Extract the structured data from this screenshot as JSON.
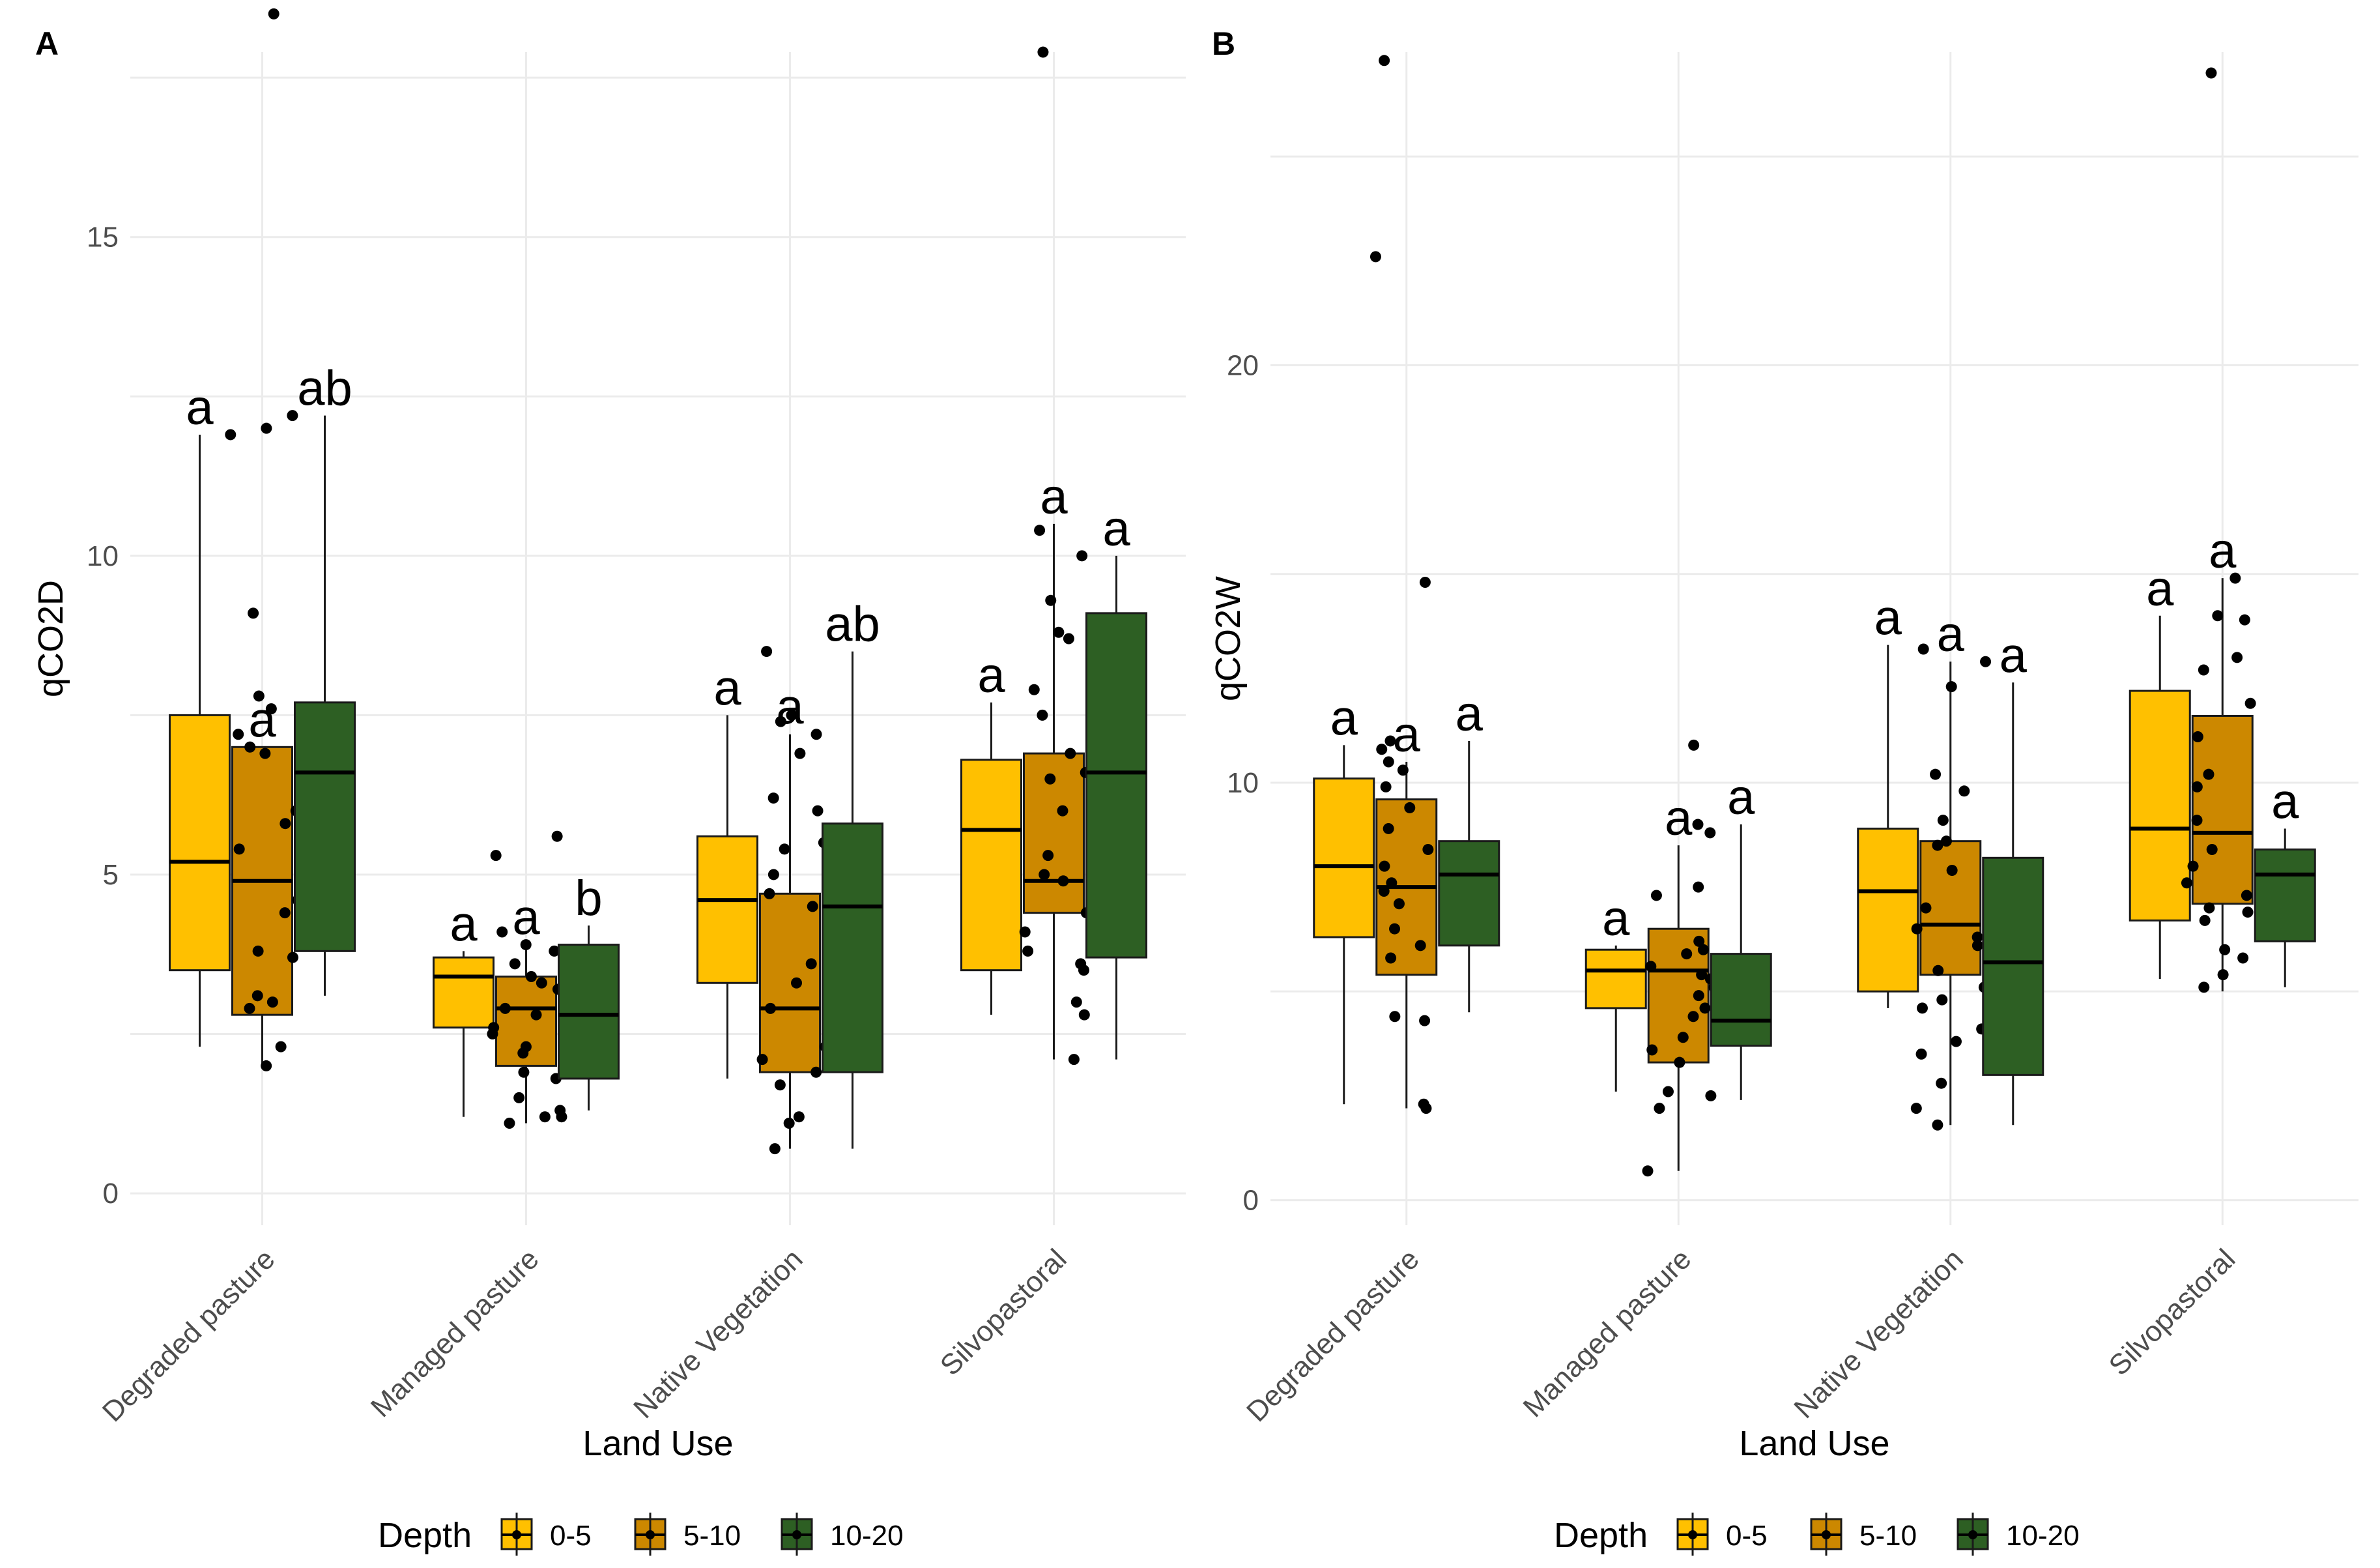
{
  "legend": {
    "title": "Depth",
    "items": [
      {
        "label": "0-5",
        "color": "#FFC000"
      },
      {
        "label": "5-10",
        "color": "#CC8800"
      },
      {
        "label": "10-20",
        "color": "#2D5F23"
      }
    ]
  },
  "chart_data": [
    {
      "type": "boxplot",
      "panel_label": "A",
      "xlabel": "Land Use",
      "ylabel": "qCO2D",
      "ylim": [
        -0.5,
        17.9
      ],
      "yticks": [
        0,
        5,
        10,
        15
      ],
      "grid": true,
      "categories": [
        "Degraded pasture",
        "Managed pasture",
        "Native Vegetation",
        "Silvopastoral"
      ],
      "series": [
        {
          "name": "0-5",
          "boxes": [
            {
              "min": 2.3,
              "q1": 3.5,
              "median": 5.2,
              "q3": 7.5,
              "max": 11.9,
              "letter": "a",
              "points": []
            },
            {
              "min": 1.2,
              "q1": 2.6,
              "median": 3.4,
              "q3": 3.7,
              "max": 3.8,
              "letter": "a",
              "points": []
            },
            {
              "min": 1.8,
              "q1": 3.3,
              "median": 4.6,
              "q3": 5.6,
              "max": 7.5,
              "letter": "a",
              "points": []
            },
            {
              "min": 2.8,
              "q1": 3.5,
              "median": 5.7,
              "q3": 6.8,
              "max": 7.7,
              "letter": "a",
              "points": []
            }
          ]
        },
        {
          "name": "5-10",
          "boxes": [
            {
              "min": 2.0,
              "q1": 2.8,
              "median": 4.9,
              "q3": 7.0,
              "max": 7.0,
              "letter": "a",
              "points": [
                12.2,
                11.9,
                12.0,
                9.1,
                7.8,
                7.6,
                7.2,
                7.0,
                6.9,
                6.0,
                5.8,
                5.4,
                4.6,
                4.4,
                3.8,
                3.7,
                3.1,
                3.0,
                2.9,
                2.3,
                2.0,
                18.5
              ]
            },
            {
              "min": 1.1,
              "q1": 2.0,
              "median": 2.9,
              "q3": 3.4,
              "max": 3.9,
              "letter": "a",
              "points": [
                5.6,
                5.3,
                4.1,
                3.9,
                3.8,
                3.6,
                3.4,
                3.3,
                3.2,
                2.9,
                2.8,
                2.6,
                2.5,
                2.3,
                2.2,
                1.9,
                1.8,
                1.5,
                1.2,
                1.1,
                1.2,
                1.3
              ]
            },
            {
              "min": 0.7,
              "q1": 1.9,
              "median": 2.9,
              "q3": 4.7,
              "max": 7.2,
              "letter": "a",
              "points": [
                8.5,
                7.5,
                7.4,
                7.2,
                6.9,
                6.2,
                6.0,
                5.5,
                5.4,
                5.0,
                4.7,
                4.5,
                3.6,
                3.3,
                2.9,
                2.3,
                2.1,
                1.9,
                1.7,
                1.2,
                1.1,
                0.7
              ]
            },
            {
              "min": 2.1,
              "q1": 4.4,
              "median": 4.9,
              "q3": 6.9,
              "max": 10.5,
              "letter": "a",
              "points": [
                10.4,
                10.0,
                9.3,
                8.8,
                8.7,
                7.9,
                7.5,
                6.9,
                6.6,
                6.5,
                6.0,
                5.3,
                5.0,
                4.9,
                4.4,
                4.1,
                3.8,
                3.6,
                3.5,
                3.0,
                2.8,
                2.1,
                17.9
              ]
            }
          ]
        },
        {
          "name": "10-20",
          "boxes": [
            {
              "min": 3.1,
              "q1": 3.8,
              "median": 6.6,
              "q3": 7.7,
              "max": 12.2,
              "letter": "ab",
              "points": []
            },
            {
              "min": 1.3,
              "q1": 1.8,
              "median": 2.8,
              "q3": 3.9,
              "max": 4.2,
              "letter": "b",
              "points": []
            },
            {
              "min": 0.7,
              "q1": 1.9,
              "median": 4.5,
              "q3": 5.8,
              "max": 8.5,
              "letter": "ab",
              "points": []
            },
            {
              "min": 2.1,
              "q1": 3.7,
              "median": 6.6,
              "q3": 9.1,
              "max": 10.0,
              "letter": "a",
              "points": []
            }
          ]
        }
      ]
    },
    {
      "type": "boxplot",
      "panel_label": "B",
      "xlabel": "Land Use",
      "ylabel": "qCO2W",
      "ylim": [
        -0.6,
        27.5
      ],
      "yticks": [
        0,
        10,
        20
      ],
      "grid": true,
      "categories": [
        "Degraded pasture",
        "Managed pasture",
        "Native Vegetation",
        "Silvopastoral"
      ],
      "series": [
        {
          "name": "0-5",
          "boxes": [
            {
              "min": 2.3,
              "q1": 6.3,
              "median": 8.0,
              "q3": 10.1,
              "max": 10.9,
              "letter": "a",
              "points": []
            },
            {
              "min": 2.6,
              "q1": 4.6,
              "median": 5.5,
              "q3": 6.0,
              "max": 6.1,
              "letter": "a",
              "points": []
            },
            {
              "min": 4.6,
              "q1": 5.0,
              "median": 7.4,
              "q3": 8.9,
              "max": 13.3,
              "letter": "a",
              "points": []
            },
            {
              "min": 5.3,
              "q1": 6.7,
              "median": 8.9,
              "q3": 12.2,
              "max": 14.0,
              "letter": "a",
              "points": []
            }
          ]
        },
        {
          "name": "5-10",
          "boxes": [
            {
              "min": 2.2,
              "q1": 5.4,
              "median": 7.5,
              "q3": 9.6,
              "max": 10.5,
              "letter": "a",
              "points": [
                27.3,
                22.6,
                14.8,
                11.0,
                10.8,
                10.5,
                10.3,
                9.9,
                9.4,
                8.9,
                8.4,
                8.0,
                7.6,
                7.4,
                7.1,
                6.5,
                6.1,
                5.8,
                4.4,
                4.3,
                2.3,
                2.2
              ]
            },
            {
              "min": 0.7,
              "q1": 3.3,
              "median": 5.5,
              "q3": 6.5,
              "max": 8.5,
              "letter": "a",
              "points": [
                10.9,
                9.0,
                8.8,
                7.5,
                7.3,
                6.2,
                6.0,
                5.9,
                5.6,
                5.4,
                5.3,
                5.1,
                4.9,
                4.6,
                4.4,
                3.9,
                3.6,
                3.3,
                2.6,
                2.5,
                2.2,
                0.7
              ]
            },
            {
              "min": 1.8,
              "q1": 5.4,
              "median": 6.6,
              "q3": 8.6,
              "max": 12.9,
              "letter": "a",
              "points": [
                13.2,
                12.9,
                12.3,
                10.2,
                9.8,
                9.1,
                8.6,
                8.5,
                7.9,
                7.0,
                6.5,
                6.3,
                6.1,
                5.5,
                5.1,
                4.8,
                4.6,
                4.1,
                3.8,
                3.5,
                2.8,
                2.2,
                1.8
              ]
            },
            {
              "min": 5.0,
              "q1": 7.1,
              "median": 8.8,
              "q3": 11.6,
              "max": 14.9,
              "letter": "a",
              "points": [
                27.0,
                14.9,
                14.0,
                13.9,
                13.0,
                12.7,
                11.9,
                11.1,
                10.2,
                9.9,
                9.1,
                8.4,
                8.0,
                7.6,
                7.3,
                7.0,
                6.9,
                6.7,
                6.0,
                5.8,
                5.4,
                5.1
              ]
            }
          ]
        },
        {
          "name": "10-20",
          "boxes": [
            {
              "min": 4.5,
              "q1": 6.1,
              "median": 7.8,
              "q3": 8.6,
              "max": 11.0,
              "letter": "a",
              "points": []
            },
            {
              "min": 2.4,
              "q1": 3.7,
              "median": 4.3,
              "q3": 5.9,
              "max": 9.0,
              "letter": "a",
              "points": []
            },
            {
              "min": 1.8,
              "q1": 3.0,
              "median": 5.7,
              "q3": 8.2,
              "max": 12.4,
              "letter": "a",
              "points": []
            },
            {
              "min": 5.1,
              "q1": 6.2,
              "median": 7.8,
              "q3": 8.4,
              "max": 8.9,
              "letter": "a",
              "points": []
            }
          ]
        }
      ]
    }
  ]
}
